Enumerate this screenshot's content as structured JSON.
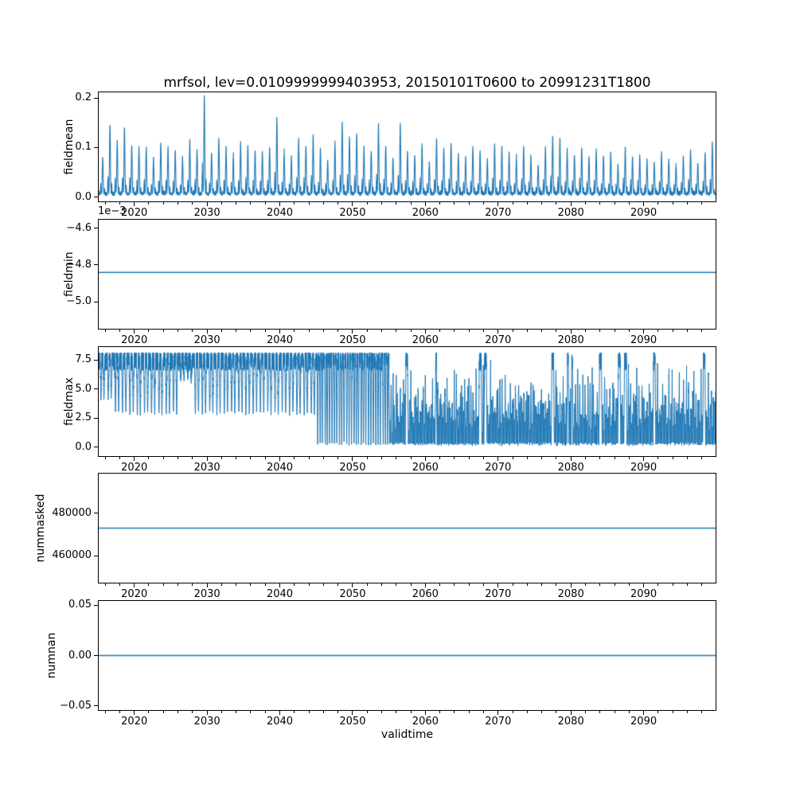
{
  "figure": {
    "title": "mrfsol, lev=0.0109999999403953, 20150101T0600 to 20991231T1800",
    "xlabel": "validtime",
    "background": "#ffffff",
    "line_color": "#1f77b4",
    "axis_color": "#000000",
    "xlim": [
      2015,
      2100
    ],
    "xticks": {
      "values": [
        2020,
        2030,
        2040,
        2050,
        2060,
        2070,
        2080,
        2090
      ],
      "labels": [
        "2020",
        "2030",
        "2040",
        "2050",
        "2060",
        "2070",
        "2080",
        "2090"
      ]
    },
    "minor_tick_step_years": 2,
    "grid": false,
    "legend": "none"
  },
  "chart_data": [
    {
      "panel": "fieldmean",
      "type": "line",
      "ylabel": "fieldmean",
      "ylim": [
        -0.0102,
        0.2132
      ],
      "yticks": {
        "values": [
          0.0,
          0.1,
          0.2
        ],
        "labels": [
          "0.0",
          "0.1",
          "0.2"
        ]
      },
      "series": {
        "kind": "annual_spikes",
        "description": "annual seasonal spikes, baseline near 0, one dominant peak per year",
        "baseline": 0.003,
        "x_years_start": 2015,
        "x_years_end": 2099,
        "annual_peak_values": [
          0.075,
          0.141,
          0.105,
          0.135,
          0.1,
          0.093,
          0.096,
          0.075,
          0.105,
          0.095,
          0.09,
          0.074,
          0.11,
          0.09,
          0.203,
          0.085,
          0.113,
          0.095,
          0.08,
          0.105,
          0.1,
          0.09,
          0.085,
          0.095,
          0.155,
          0.087,
          0.077,
          0.112,
          0.098,
          0.12,
          0.092,
          0.07,
          0.105,
          0.147,
          0.118,
          0.125,
          0.096,
          0.088,
          0.142,
          0.1,
          0.073,
          0.145,
          0.085,
          0.08,
          0.1,
          0.065,
          0.112,
          0.093,
          0.105,
          0.082,
          0.075,
          0.095,
          0.085,
          0.07,
          0.1,
          0.095,
          0.085,
          0.075,
          0.095,
          0.078,
          0.06,
          0.095,
          0.118,
          0.112,
          0.09,
          0.08,
          0.095,
          0.075,
          0.09,
          0.078,
          0.085,
          0.06,
          0.095,
          0.075,
          0.08,
          0.07,
          0.065,
          0.085,
          0.07,
          0.06,
          0.078,
          0.09,
          0.065,
          0.085,
          0.105
        ]
      }
    },
    {
      "panel": "fieldmin",
      "type": "line",
      "ylabel": "fieldmin",
      "offset_text": "1e−3",
      "ylim": [
        -0.00515,
        -0.00455
      ],
      "yticks": {
        "values": [
          -0.0046,
          -0.0048,
          -0.005
        ],
        "labels": [
          "−4.6",
          "−4.8",
          "−5.0"
        ]
      },
      "series": {
        "kind": "constant",
        "value": -0.00484,
        "description": "flat line at −4.84e−3"
      }
    },
    {
      "panel": "fieldmax",
      "type": "line",
      "ylabel": "fieldmax",
      "ylim": [
        -0.82,
        8.66
      ],
      "yticks": {
        "values": [
          0.0,
          2.5,
          5.0,
          7.5
        ],
        "labels": [
          "0.0",
          "2.5",
          "5.0",
          "7.5"
        ]
      },
      "series": {
        "kind": "annual_dips",
        "description": "dense line near 8 with downward annual dips; dips reach ~2.9 before 2045, reach 0 after 2045, very dense after 2055",
        "top_level": 8.18,
        "top_band_low": 6.6,
        "dense_from_year": 2045,
        "very_dense_from_year": 2055,
        "x_years_start": 2015,
        "x_years_end": 2099,
        "annual_min_values": [
          4.2,
          4.1,
          2.9,
          2.85,
          2.9,
          2.85,
          2.9,
          2.85,
          2.9,
          2.85,
          2.9,
          5.5,
          5.6,
          2.9,
          2.85,
          2.9,
          2.85,
          2.9,
          2.85,
          2.9,
          2.85,
          2.9,
          2.85,
          2.9,
          2.85,
          2.9,
          2.85,
          2.9,
          2.85,
          2.9,
          0.05,
          0.05,
          0.05,
          0.05,
          0.05,
          0.05,
          0.05,
          0.05,
          0.05,
          0.05,
          0.05,
          0.05,
          0.05,
          0.05,
          0.05,
          0.05,
          0.05,
          0.05,
          0.05,
          0.05,
          0.05,
          0.05,
          0.05,
          0.05,
          0.05,
          0.05,
          0.05,
          0.05,
          0.05,
          0.05,
          0.05,
          0.05,
          0.05,
          0.05,
          0.05,
          0.05,
          0.05,
          0.05,
          0.05,
          0.05,
          0.05,
          0.05,
          0.05,
          0.05,
          0.05,
          0.05,
          0.05,
          0.05,
          0.05,
          0.05,
          0.05,
          0.05,
          0.05,
          0.05,
          0.05
        ]
      }
    },
    {
      "panel": "nummasked",
      "type": "line",
      "ylabel": "nummasked",
      "ylim": [
        447000,
        499000
      ],
      "yticks": {
        "values": [
          460000,
          480000
        ],
        "labels": [
          "460000",
          "480000"
        ]
      },
      "series": {
        "kind": "constant",
        "value": 473000,
        "description": "flat line at ~473000"
      }
    },
    {
      "panel": "numnan",
      "type": "line",
      "ylabel": "numnan",
      "ylim": [
        -0.055,
        0.055
      ],
      "yticks": {
        "values": [
          -0.05,
          0.0,
          0.05
        ],
        "labels": [
          "−0.05",
          "0.00",
          "0.05"
        ]
      },
      "series": {
        "kind": "constant",
        "value": 0,
        "description": "flat line at 0"
      }
    }
  ]
}
